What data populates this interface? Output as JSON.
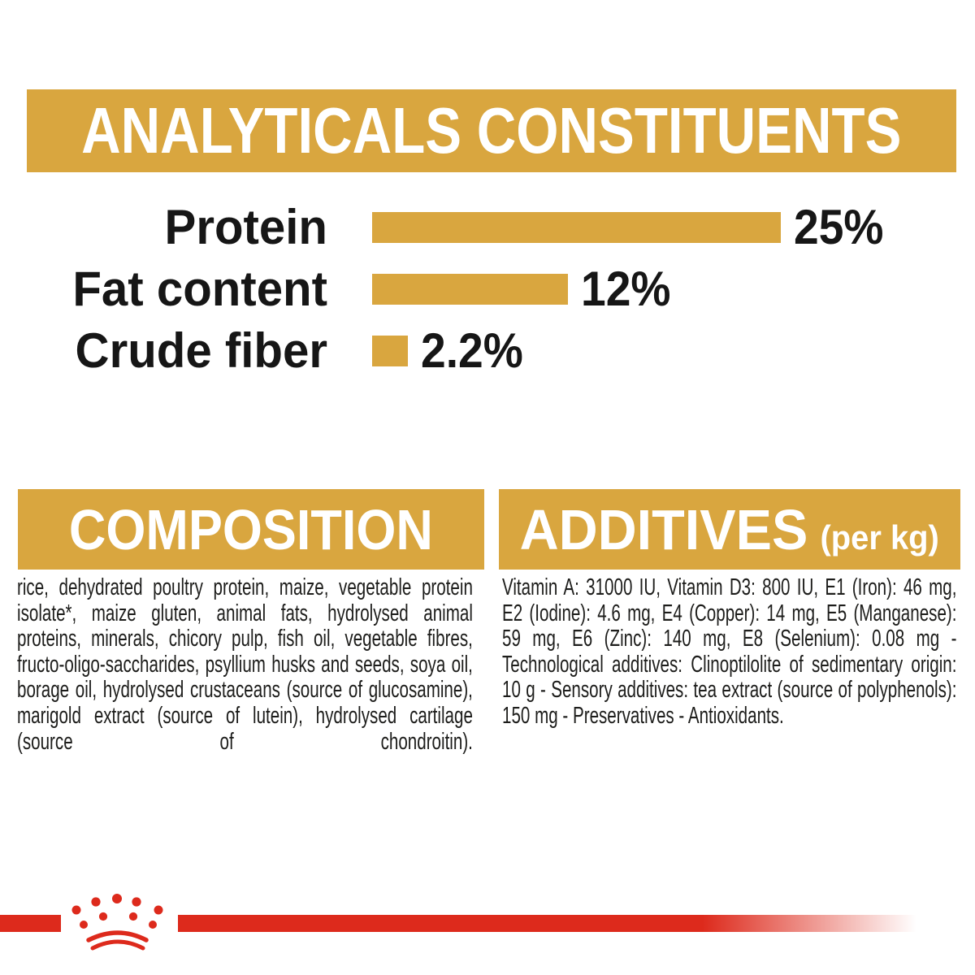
{
  "title_banner": {
    "text": "ANALYTICALS CONSTITUENTS"
  },
  "chart_data": {
    "type": "bar",
    "orientation": "horizontal",
    "title": "ANALYTICALS CONSTITUENTS",
    "categories": [
      "Protein",
      "Fat content",
      "Crude fiber"
    ],
    "values": [
      25,
      12,
      2.2
    ],
    "value_labels": [
      "25%",
      "12%",
      "2.2%"
    ],
    "unit": "%",
    "xlim": [
      0,
      25
    ],
    "grid": false,
    "legend": false,
    "bar_color": "#d9a63f"
  },
  "sections": {
    "composition": {
      "heading": "COMPOSITION",
      "body": "rice, dehydrated poultry protein, maize, vegetable protein isolate*, maize gluten, animal fats, hydrolysed animal proteins, minerals, chicory pulp, fish oil, vegetable fibres, fructo-oligo-saccharides, psyllium husks and seeds, soya oil, borage oil, hydrolysed crustaceans (source of glucosamine), marigold extract (source of lutein), hydrolysed cartilage (source of chondroitin)."
    },
    "additives": {
      "heading": "ADDITIVES",
      "heading_suffix": "(per kg)",
      "body": "Vitamin A: 31000 IU, Vitamin D3: 800 IU, E1 (Iron): 46 mg, E2 (Iodine): 4.6 mg, E4 (Copper): 14 mg, E5 (Manganese): 59 mg, E6 (Zinc): 140 mg, E8 (Selenium): 0.08 mg - Technological additives: Clinoptilolite of sedimentary origin: 10 g - Sensory additives: tea extract (source of polyphenols): 150 mg - Preservatives - Antioxidants."
    }
  },
  "footer": {
    "brand_logo": "royal-canin-crown"
  },
  "colors": {
    "gold": "#d9a63f",
    "red": "#dd2a1c",
    "text": "#1d1d1b",
    "heading_text": "#ffffff",
    "background": "#ffffff"
  }
}
